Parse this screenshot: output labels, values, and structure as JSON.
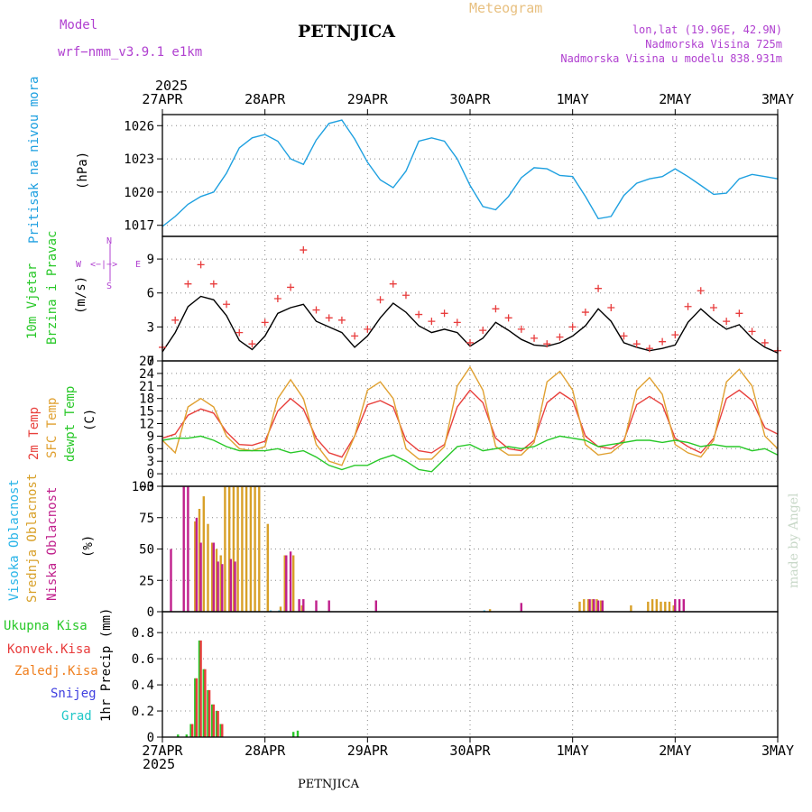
{
  "header": {
    "model_label": "Model",
    "model_name": "wrf−nmm_v3.9.1  e1km",
    "title": "PETNJICA",
    "meteogram": "Meteogram",
    "lonlat": "lon,lat (19.96E, 42.9N)",
    "elevation": "Nadmorska Visina 725m",
    "model_elevation": "Nadmorska Visina u modelu 838.931m",
    "year_top": "2025",
    "year_bottom": "2025",
    "footer_title": "PETNJICA",
    "credit": "made by Angel"
  },
  "time_axis": {
    "labels": [
      "27APR",
      "28APR",
      "29APR",
      "30APR",
      "1MAY",
      "2MAY",
      "3MAY"
    ]
  },
  "colors": {
    "pressure": "#1ea0e0",
    "wind_speed": "#000000",
    "wind_gust": "#e83c3c",
    "temp_2m": "#e8403c",
    "temp_sfc": "#e0a030",
    "dewpoint": "#28c828",
    "cloud_high": "#28b4e8",
    "cloud_mid": "#d8a028",
    "cloud_low": "#c0208c",
    "precip_total": "#28c828",
    "precip_conv": "#e83c3c",
    "precip_frz": "#f08020",
    "precip_snow": "#4040e0",
    "precip_grad": "#20c8c8"
  },
  "panels": {
    "pressure": {
      "label1": "Pritisak na nivou mora",
      "unit": "(hPa)"
    },
    "wind": {
      "label1": "10m Vjetar",
      "label2": "Brzina i Pravac",
      "unit": "(m/s)",
      "compass_w": "W",
      "compass_e": "E",
      "compass_n": "N",
      "compass_s": "S",
      "arrow_lr": "<−|−>"
    },
    "temp": {
      "label1": "2m Temp",
      "label2": "SFC Temp",
      "label3": "dewpt Temp",
      "unit": "(C)"
    },
    "cloud": {
      "label1": "Visoka Oblacnost",
      "label2": "Srednja Oblacnost",
      "label3": "Niska  Oblacnost",
      "unit": "(%)"
    },
    "precip": {
      "legend": [
        "Ukupna Kisa",
        "Konvek.Kisa",
        "Zaledj.Kisa",
        "Snijeg",
        "Grad"
      ],
      "unit": "1hr Precip (mm)"
    }
  },
  "chart_data": [
    {
      "type": "line",
      "title": "",
      "ylabel": "Pritisak na nivou mora (hPa)",
      "ylim": [
        1016,
        1027
      ],
      "yticks": [
        1017,
        1020,
        1023,
        1026
      ],
      "x_unit": "hours since 27APR 00UTC",
      "grid": true,
      "series": [
        {
          "name": "Pritisak na nivou mora",
          "color": "#1ea0e0",
          "x": [
            0,
            3,
            6,
            9,
            12,
            15,
            18,
            21,
            24,
            27,
            30,
            33,
            36,
            39,
            42,
            45,
            48,
            51,
            54,
            57,
            60,
            63,
            66,
            69,
            72,
            75,
            78,
            81,
            84,
            87,
            90,
            93,
            96,
            99,
            102,
            105,
            108,
            111,
            114,
            117,
            120,
            123,
            126,
            129,
            132,
            135,
            138,
            141,
            144
          ],
          "y": [
            1016.9,
            1017.8,
            1018.9,
            1019.6,
            1020.0,
            1021.7,
            1024.0,
            1024.9,
            1025.2,
            1024.6,
            1023.0,
            1022.5,
            1024.7,
            1026.2,
            1026.5,
            1024.8,
            1022.7,
            1021.1,
            1020.4,
            1021.9,
            1024.6,
            1024.9,
            1024.6,
            1023.0,
            1020.6,
            1018.7,
            1018.4,
            1019.6,
            1021.3,
            1022.2,
            1022.1,
            1021.5,
            1021.4,
            1019.6,
            1017.6,
            1017.8,
            1019.7,
            1020.8,
            1021.2,
            1021.4,
            1022.1,
            1021.4,
            1020.6,
            1019.8,
            1019.9,
            1021.2,
            1021.6,
            1021.4,
            1021.2
          ]
        }
      ]
    },
    {
      "type": "line",
      "title": "",
      "ylabel": "10m Vjetar Brzina i Pravac (m/s)",
      "ylim": [
        0,
        11
      ],
      "yticks": [
        0,
        3,
        6,
        9
      ],
      "x_unit": "hours since 27APR 00UTC",
      "grid": true,
      "series": [
        {
          "name": "Brzina vjetra",
          "color": "#000000",
          "x": [
            0,
            3,
            6,
            9,
            12,
            15,
            18,
            21,
            24,
            27,
            30,
            33,
            36,
            39,
            42,
            45,
            48,
            51,
            54,
            57,
            60,
            63,
            66,
            69,
            72,
            75,
            78,
            81,
            84,
            87,
            90,
            93,
            96,
            99,
            102,
            105,
            108,
            111,
            114,
            117,
            120,
            123,
            126,
            129,
            132,
            135,
            138,
            141,
            144
          ],
          "y": [
            0.8,
            2.5,
            4.8,
            5.7,
            5.4,
            4.0,
            1.8,
            1.0,
            2.2,
            4.2,
            4.7,
            5.0,
            3.5,
            3.0,
            2.5,
            1.2,
            2.2,
            3.8,
            5.1,
            4.3,
            3.1,
            2.5,
            2.8,
            2.5,
            1.3,
            2.0,
            3.4,
            2.7,
            1.9,
            1.4,
            1.3,
            1.6,
            2.2,
            3.1,
            4.6,
            3.5,
            1.6,
            1.2,
            0.9,
            1.1,
            1.4,
            3.4,
            4.6,
            3.6,
            2.8,
            3.2,
            2.0,
            1.2,
            0.7
          ]
        },
        {
          "name": "Udari vjetra",
          "color": "#e83c3c",
          "x": [
            0,
            3,
            6,
            9,
            12,
            15,
            18,
            21,
            24,
            27,
            30,
            33,
            36,
            39,
            42,
            45,
            48,
            51,
            54,
            57,
            60,
            63,
            66,
            69,
            72,
            75,
            78,
            81,
            84,
            87,
            90,
            93,
            96,
            99,
            102,
            105,
            108,
            111,
            114,
            117,
            120,
            123,
            126,
            129,
            132,
            135,
            138,
            141,
            144
          ],
          "y": [
            1.2,
            3.6,
            6.8,
            8.5,
            6.8,
            5.0,
            2.5,
            1.5,
            3.4,
            5.5,
            6.5,
            9.8,
            4.5,
            3.8,
            3.6,
            2.2,
            2.8,
            5.4,
            6.8,
            5.8,
            4.1,
            3.5,
            4.2,
            3.4,
            1.6,
            2.7,
            4.6,
            3.8,
            2.8,
            2.0,
            1.5,
            2.1,
            3.0,
            4.3,
            6.4,
            4.7,
            2.2,
            1.5,
            1.1,
            1.7,
            2.3,
            4.8,
            6.2,
            4.7,
            3.5,
            4.2,
            2.6,
            1.6,
            0.9
          ]
        }
      ]
    },
    {
      "type": "line",
      "title": "",
      "ylabel": "Temperatura (C)",
      "ylim": [
        -3,
        27
      ],
      "yticks": [
        -3,
        0,
        3,
        6,
        9,
        12,
        15,
        18,
        21,
        24,
        27
      ],
      "x_unit": "hours since 27APR 00UTC",
      "grid": true,
      "series": [
        {
          "name": "2m Temp",
          "color": "#e8403c",
          "x": [
            0,
            3,
            6,
            9,
            12,
            15,
            18,
            21,
            24,
            27,
            30,
            33,
            36,
            39,
            42,
            45,
            48,
            51,
            54,
            57,
            60,
            63,
            66,
            69,
            72,
            75,
            78,
            81,
            84,
            87,
            90,
            93,
            96,
            99,
            102,
            105,
            108,
            111,
            114,
            117,
            120,
            123,
            126,
            129,
            132,
            135,
            138,
            141,
            144
          ],
          "y": [
            8.5,
            9.5,
            14.0,
            15.5,
            14.5,
            10.0,
            7.0,
            6.8,
            7.8,
            15.0,
            18.0,
            15.5,
            8.5,
            5.0,
            4.0,
            9.0,
            16.5,
            17.5,
            16.0,
            8.0,
            5.5,
            5.0,
            7.0,
            16.0,
            20.0,
            17.0,
            8.5,
            6.0,
            5.5,
            8.0,
            17.0,
            19.5,
            17.5,
            9.0,
            6.5,
            6.0,
            8.0,
            16.5,
            18.5,
            16.5,
            8.5,
            6.5,
            5.0,
            8.5,
            18.0,
            20.0,
            17.5,
            11.0,
            9.5
          ]
        },
        {
          "name": "SFC Temp",
          "color": "#e0a030",
          "x": [
            0,
            3,
            6,
            9,
            12,
            15,
            18,
            21,
            24,
            27,
            30,
            33,
            36,
            39,
            42,
            45,
            48,
            51,
            54,
            57,
            60,
            63,
            66,
            69,
            72,
            75,
            78,
            81,
            84,
            87,
            90,
            93,
            96,
            99,
            102,
            105,
            108,
            111,
            114,
            117,
            120,
            123,
            126,
            129,
            132,
            135,
            138,
            141,
            144
          ],
          "y": [
            8.0,
            5.0,
            16.0,
            18.0,
            16.0,
            9.0,
            6.0,
            5.5,
            6.5,
            18.0,
            22.5,
            18.0,
            7.0,
            3.0,
            2.0,
            9.0,
            20.0,
            22.0,
            18.0,
            6.0,
            3.5,
            3.5,
            6.5,
            21.0,
            25.5,
            20.0,
            6.5,
            4.5,
            4.5,
            7.5,
            22.0,
            24.5,
            20.0,
            7.0,
            4.5,
            5.0,
            7.5,
            20.0,
            23.0,
            19.0,
            7.0,
            5.0,
            4.0,
            8.0,
            22.0,
            25.0,
            21.0,
            9.0,
            6.0
          ]
        },
        {
          "name": "dewpt Temp",
          "color": "#28c828",
          "x": [
            0,
            3,
            6,
            9,
            12,
            15,
            18,
            21,
            24,
            27,
            30,
            33,
            36,
            39,
            42,
            45,
            48,
            51,
            54,
            57,
            60,
            63,
            66,
            69,
            72,
            75,
            78,
            81,
            84,
            87,
            90,
            93,
            96,
            99,
            102,
            105,
            108,
            111,
            114,
            117,
            120,
            123,
            126,
            129,
            132,
            135,
            138,
            141,
            144
          ],
          "y": [
            8.0,
            8.5,
            8.5,
            9.0,
            8.0,
            6.5,
            5.5,
            5.5,
            5.5,
            6.0,
            5.0,
            5.5,
            4.0,
            2.0,
            1.0,
            2.0,
            2.0,
            3.5,
            4.5,
            3.0,
            1.0,
            0.5,
            3.5,
            6.5,
            7.0,
            5.5,
            6.0,
            6.5,
            6.0,
            6.5,
            8.0,
            9.0,
            8.5,
            8.0,
            6.5,
            7.0,
            7.5,
            8.0,
            8.0,
            7.5,
            8.0,
            7.5,
            6.5,
            7.0,
            6.5,
            6.5,
            5.5,
            6.0,
            4.5
          ]
        }
      ]
    },
    {
      "type": "bar",
      "title": "",
      "ylabel": "Oblacnost (%)",
      "ylim": [
        0,
        100
      ],
      "yticks": [
        0,
        25,
        50,
        75,
        100
      ],
      "x_unit": "hours since 27APR 00UTC",
      "grid": true,
      "series": [
        {
          "name": "Srednja Oblacnost",
          "color": "#d8a028",
          "x": [
            8,
            9,
            10,
            11,
            12,
            13,
            14,
            15,
            16,
            17,
            18,
            19,
            20,
            21,
            22,
            23,
            25,
            28,
            29,
            31,
            33,
            77,
            98,
            99,
            100,
            101,
            102,
            103,
            110,
            114,
            115,
            116,
            117,
            118,
            119,
            120
          ],
          "y": [
            72,
            82,
            92,
            70,
            55,
            50,
            45,
            100,
            100,
            100,
            100,
            100,
            100,
            100,
            100,
            100,
            70,
            4,
            45,
            45,
            5,
            2,
            8,
            10,
            10,
            10,
            10,
            9,
            5,
            8,
            10,
            10,
            8,
            8,
            8,
            5
          ]
        },
        {
          "name": "Niska  Oblacnost",
          "color": "#c0208c",
          "x": [
            2,
            5,
            6,
            8,
            9,
            12,
            13,
            14,
            16,
            17,
            29,
            30,
            32,
            33,
            36,
            39,
            50,
            84,
            100,
            101,
            102,
            103,
            120,
            121,
            122
          ],
          "y": [
            50,
            100,
            100,
            75,
            55,
            55,
            40,
            38,
            42,
            40,
            45,
            48,
            10,
            10,
            9,
            9,
            9,
            7,
            10,
            10,
            9,
            9,
            10,
            10,
            10
          ]
        },
        {
          "name": "Visoka Oblacnost",
          "color": "#28b4e8",
          "x": [
            25,
            27,
            75
          ],
          "y": [
            1,
            1,
            1
          ]
        }
      ]
    },
    {
      "type": "bar",
      "title": "",
      "ylabel": "1hr Precip (mm)",
      "ylim": [
        0,
        0.96
      ],
      "yticks": [
        0,
        0.2,
        0.4,
        0.6,
        0.8
      ],
      "x_unit": "hours since 27APR 00UTC",
      "grid": true,
      "series": [
        {
          "name": "Ukupna Kisa",
          "color": "#28c828",
          "x": [
            4,
            6,
            7,
            8,
            9,
            10,
            11,
            12,
            13,
            14,
            31,
            32
          ],
          "y": [
            0.02,
            0.02,
            0.1,
            0.45,
            0.74,
            0.52,
            0.36,
            0.25,
            0.2,
            0.1,
            0.04,
            0.05
          ]
        },
        {
          "name": "Konvek.Kisa",
          "color": "#e83c3c",
          "x": [
            7,
            8,
            9,
            10,
            11,
            12,
            13,
            14
          ],
          "y": [
            0.1,
            0.45,
            0.74,
            0.52,
            0.36,
            0.25,
            0.2,
            0.1
          ]
        }
      ]
    }
  ]
}
